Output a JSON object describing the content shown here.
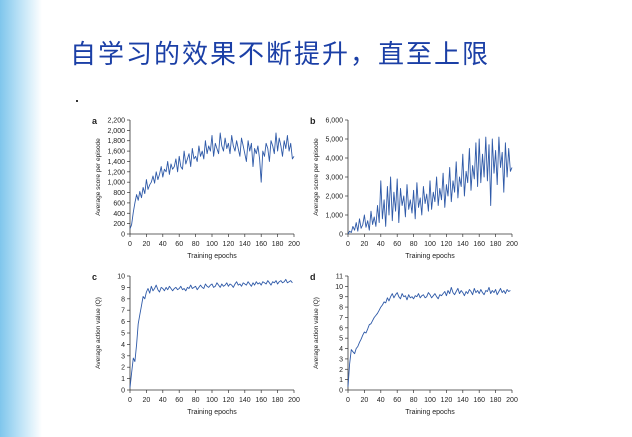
{
  "slide": {
    "title": "自学习的效果不断提升，直至上限"
  },
  "colors": {
    "line": "#2f5aa8",
    "title": "#1b3fa6",
    "axis": "#333333"
  },
  "chart_data": [
    {
      "type": "line",
      "panel_label": "a",
      "xlabel": "Training epochs",
      "ylabel": "Average score per episode",
      "xlim": [
        0,
        200
      ],
      "ylim": [
        0,
        2200
      ],
      "xticks": [
        0,
        20,
        40,
        60,
        80,
        100,
        120,
        140,
        160,
        180,
        200
      ],
      "yticks": [
        0,
        200,
        400,
        600,
        800,
        1000,
        1200,
        1400,
        1600,
        1800,
        2000,
        2200
      ],
      "ytick_labels": [
        "0",
        "200",
        "400",
        "600",
        "800",
        "1,000",
        "1,200",
        "1,400",
        "1,600",
        "1,800",
        "2,000",
        "2,200"
      ],
      "series": [
        {
          "x": [
            0,
            2,
            4,
            6,
            8,
            10,
            12,
            14,
            16,
            18,
            20,
            22,
            24,
            26,
            28,
            30,
            32,
            34,
            36,
            38,
            40,
            42,
            44,
            46,
            48,
            50,
            52,
            54,
            56,
            58,
            60,
            62,
            64,
            66,
            68,
            70,
            72,
            74,
            76,
            78,
            80,
            82,
            84,
            86,
            88,
            90,
            92,
            94,
            96,
            98,
            100,
            102,
            104,
            106,
            108,
            110,
            112,
            114,
            116,
            118,
            120,
            122,
            124,
            126,
            128,
            130,
            132,
            134,
            136,
            138,
            140,
            142,
            144,
            146,
            148,
            150,
            152,
            154,
            156,
            158,
            160,
            162,
            164,
            166,
            168,
            170,
            172,
            174,
            176,
            178,
            180,
            182,
            184,
            186,
            188,
            190,
            192,
            194,
            196,
            198,
            200
          ],
          "y": [
            100,
            180,
            420,
            600,
            760,
            650,
            820,
            700,
            900,
            780,
            1050,
            860,
            950,
            1000,
            1120,
            980,
            1200,
            1050,
            1150,
            1300,
            1100,
            1250,
            1200,
            1400,
            1150,
            1350,
            1250,
            1300,
            1450,
            1200,
            1500,
            1300,
            1250,
            1600,
            1350,
            1450,
            1550,
            1300,
            1650,
            1450,
            1500,
            1400,
            1700,
            1500,
            1600,
            1450,
            1800,
            1550,
            1700,
            1600,
            1900,
            1500,
            1750,
            1650,
            1550,
            1950,
            1700,
            1600,
            1850,
            1650,
            1750,
            1550,
            1900,
            1700,
            1600,
            1800,
            1650,
            1500,
            1850,
            1700,
            1550,
            1400,
            1800,
            1600,
            1750,
            1300,
            1650,
            1550,
            1700,
            1450,
            1000,
            1600,
            1500,
            1750,
            1650,
            1400,
            1800,
            1700,
            1550,
            1950,
            1600,
            1850,
            1700,
            1500,
            1800,
            1650,
            1900,
            1600,
            1750,
            1450,
            1500
          ]
        }
      ]
    },
    {
      "type": "line",
      "panel_label": "b",
      "xlabel": "Training epochs",
      "ylabel": "Average score per episode",
      "xlim": [
        0,
        200
      ],
      "ylim": [
        0,
        6000
      ],
      "xticks": [
        0,
        20,
        40,
        60,
        80,
        100,
        120,
        140,
        160,
        180,
        200
      ],
      "yticks": [
        0,
        1000,
        2000,
        3000,
        4000,
        5000,
        6000
      ],
      "ytick_labels": [
        "0",
        "1,000",
        "2,000",
        "3,000",
        "4,000",
        "5,000",
        "6,000"
      ],
      "series": [
        {
          "x": [
            0,
            2,
            4,
            6,
            8,
            10,
            12,
            14,
            16,
            18,
            20,
            22,
            24,
            26,
            28,
            30,
            32,
            34,
            36,
            38,
            40,
            42,
            44,
            46,
            48,
            50,
            52,
            54,
            56,
            58,
            60,
            62,
            64,
            66,
            68,
            70,
            72,
            74,
            76,
            78,
            80,
            82,
            84,
            86,
            88,
            90,
            92,
            94,
            96,
            98,
            100,
            102,
            104,
            106,
            108,
            110,
            112,
            114,
            116,
            118,
            120,
            122,
            124,
            126,
            128,
            130,
            132,
            134,
            136,
            138,
            140,
            142,
            144,
            146,
            148,
            150,
            152,
            154,
            156,
            158,
            160,
            162,
            164,
            166,
            168,
            170,
            172,
            174,
            176,
            178,
            180,
            182,
            184,
            186,
            188,
            190,
            192,
            194,
            196,
            198,
            200
          ],
          "y": [
            0,
            150,
            80,
            400,
            200,
            600,
            150,
            800,
            300,
            500,
            1000,
            350,
            700,
            200,
            1200,
            500,
            900,
            400,
            1500,
            600,
            2800,
            800,
            1800,
            400,
            2500,
            1000,
            3000,
            700,
            2200,
            1200,
            2900,
            600,
            2400,
            1500,
            2000,
            900,
            2600,
            1300,
            1800,
            1100,
            2300,
            800,
            2700,
            1400,
            1900,
            1000,
            2500,
            1600,
            2100,
            1200,
            2800,
            1300,
            2200,
            1700,
            3000,
            1500,
            2400,
            1800,
            3200,
            1400,
            2600,
            2000,
            3500,
            1700,
            2800,
            2200,
            3800,
            1900,
            3000,
            2500,
            4200,
            2000,
            3300,
            2700,
            4500,
            2300,
            3600,
            2900,
            4800,
            2500,
            5000,
            2700,
            4200,
            3000,
            5100,
            2800,
            4700,
            1500,
            5000,
            3200,
            4400,
            2600,
            5100,
            3500,
            4300,
            2200,
            4800,
            3000,
            4500,
            3300,
            3500
          ]
        }
      ]
    },
    {
      "type": "line",
      "panel_label": "c",
      "xlabel": "Training epochs",
      "ylabel": "Average action value (Q)",
      "xlim": [
        0,
        200
      ],
      "ylim": [
        0,
        10
      ],
      "xticks": [
        0,
        20,
        40,
        60,
        80,
        100,
        120,
        140,
        160,
        180,
        200
      ],
      "yticks": [
        0,
        1,
        2,
        3,
        4,
        5,
        6,
        7,
        8,
        9,
        10
      ],
      "ytick_labels": [
        "0",
        "1",
        "2",
        "3",
        "4",
        "5",
        "6",
        "7",
        "8",
        "9",
        "10"
      ],
      "series": [
        {
          "x": [
            0,
            2,
            4,
            6,
            8,
            10,
            12,
            14,
            16,
            18,
            20,
            22,
            24,
            26,
            28,
            30,
            32,
            34,
            36,
            38,
            40,
            42,
            44,
            46,
            48,
            50,
            52,
            54,
            56,
            58,
            60,
            62,
            64,
            66,
            68,
            70,
            72,
            74,
            76,
            78,
            80,
            82,
            84,
            86,
            88,
            90,
            92,
            94,
            96,
            98,
            100,
            102,
            104,
            106,
            108,
            110,
            112,
            114,
            116,
            118,
            120,
            122,
            124,
            126,
            128,
            130,
            132,
            134,
            136,
            138,
            140,
            142,
            144,
            146,
            148,
            150,
            152,
            154,
            156,
            158,
            160,
            162,
            164,
            166,
            168,
            170,
            172,
            174,
            176,
            178,
            180,
            182,
            184,
            186,
            188,
            190,
            192,
            194,
            196,
            198
          ],
          "y": [
            0.2,
            1.5,
            2.8,
            2.5,
            4.0,
            5.8,
            6.6,
            7.4,
            8.2,
            8.0,
            8.6,
            8.9,
            8.5,
            9.1,
            8.7,
            8.9,
            9.2,
            8.8,
            8.6,
            9.0,
            8.9,
            8.7,
            9.0,
            8.8,
            9.1,
            8.9,
            8.7,
            8.9,
            9.0,
            8.8,
            8.9,
            9.1,
            8.8,
            8.9,
            8.7,
            9.0,
            8.9,
            9.2,
            8.9,
            9.0,
            9.1,
            8.8,
            9.0,
            9.2,
            9.0,
            8.9,
            9.3,
            9.1,
            9.0,
            9.2,
            9.3,
            9.0,
            9.1,
            9.4,
            9.2,
            9.0,
            9.3,
            9.1,
            9.2,
            9.4,
            9.1,
            9.3,
            9.2,
            9.0,
            9.3,
            9.5,
            9.2,
            9.3,
            9.1,
            9.4,
            9.3,
            9.2,
            9.5,
            9.3,
            9.1,
            9.4,
            9.2,
            9.5,
            9.3,
            9.4,
            9.2,
            9.5,
            9.4,
            9.3,
            9.6,
            9.4,
            9.2,
            9.5,
            9.4,
            9.6,
            9.3,
            9.5,
            9.6,
            9.4,
            9.5,
            9.7,
            9.4,
            9.5,
            9.6,
            9.4
          ]
        }
      ]
    },
    {
      "type": "line",
      "panel_label": "d",
      "xlabel": "Training epochs",
      "ylabel": "Average action value (Q)",
      "xlim": [
        0,
        200
      ],
      "ylim": [
        0,
        11
      ],
      "xticks": [
        0,
        20,
        40,
        60,
        80,
        100,
        120,
        140,
        160,
        180,
        200
      ],
      "yticks": [
        0,
        1,
        2,
        3,
        4,
        5,
        6,
        7,
        8,
        9,
        10,
        11
      ],
      "ytick_labels": [
        "0",
        "1",
        "2",
        "3",
        "4",
        "5",
        "6",
        "7",
        "8",
        "9",
        "10",
        "11"
      ],
      "series": [
        {
          "x": [
            0,
            2,
            4,
            6,
            8,
            10,
            12,
            14,
            16,
            18,
            20,
            22,
            24,
            26,
            28,
            30,
            32,
            34,
            36,
            38,
            40,
            42,
            44,
            46,
            48,
            50,
            52,
            54,
            56,
            58,
            60,
            62,
            64,
            66,
            68,
            70,
            72,
            74,
            76,
            78,
            80,
            82,
            84,
            86,
            88,
            90,
            92,
            94,
            96,
            98,
            100,
            102,
            104,
            106,
            108,
            110,
            112,
            114,
            116,
            118,
            120,
            122,
            124,
            126,
            128,
            130,
            132,
            134,
            136,
            138,
            140,
            142,
            144,
            146,
            148,
            150,
            152,
            154,
            156,
            158,
            160,
            162,
            164,
            166,
            168,
            170,
            172,
            174,
            176,
            178,
            180,
            182,
            184,
            186,
            188,
            190,
            192,
            194,
            196,
            198
          ],
          "y": [
            0.3,
            2.5,
            3.9,
            3.7,
            3.5,
            4.0,
            4.2,
            4.6,
            4.9,
            5.3,
            5.6,
            5.5,
            5.9,
            6.3,
            6.4,
            6.7,
            7.0,
            7.2,
            7.4,
            7.7,
            8.0,
            8.2,
            8.5,
            8.4,
            8.9,
            8.6,
            9.0,
            9.3,
            8.9,
            9.2,
            9.4,
            9.0,
            8.8,
            9.3,
            9.0,
            9.1,
            8.7,
            9.2,
            8.9,
            9.0,
            8.8,
            9.1,
            9.0,
            9.3,
            8.9,
            9.1,
            9.2,
            8.9,
            9.0,
            9.4,
            9.2,
            8.9,
            9.1,
            9.3,
            9.0,
            8.8,
            9.2,
            9.1,
            9.3,
            9.5,
            9.1,
            9.6,
            9.3,
            9.9,
            9.4,
            9.2,
            9.5,
            9.8,
            9.3,
            9.6,
            9.4,
            9.1,
            9.5,
            9.3,
            9.7,
            9.5,
            9.2,
            9.8,
            9.4,
            9.6,
            9.3,
            9.7,
            9.4,
            9.2,
            9.6,
            9.5,
            9.9,
            9.3,
            9.6,
            9.4,
            9.7,
            9.2,
            9.5,
            9.8,
            9.4,
            9.6,
            9.3,
            9.7,
            9.5,
            9.6
          ]
        }
      ]
    }
  ]
}
